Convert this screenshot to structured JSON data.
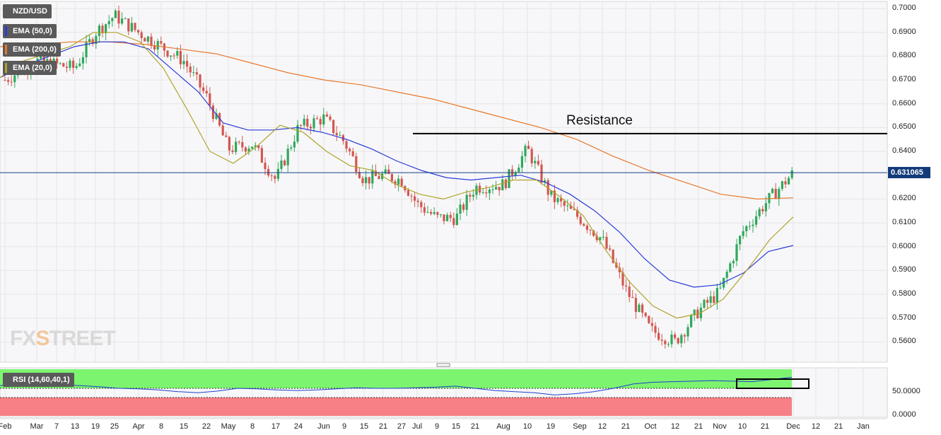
{
  "chart_data": {
    "type": "candlestick",
    "symbol": "NZD/USD",
    "indicators": [
      {
        "name": "EMA (50,0)",
        "color": "#2a3bd8"
      },
      {
        "name": "EMA (200,0)",
        "color": "#e8782c"
      },
      {
        "name": "EMA (20,0)",
        "color": "#b0a32a"
      }
    ],
    "current_price": "0.631065",
    "resistance_label": "Resistance",
    "resistance_level": 0.6475,
    "ylim": [
      0.5515,
      0.703
    ],
    "y_ticks": [
      "0.7000",
      "0.6900",
      "0.6800",
      "0.6700",
      "0.6600",
      "0.6500",
      "0.6400",
      "0.6200",
      "0.6100",
      "0.6000",
      "0.5900",
      "0.5800",
      "0.5700",
      "0.5600"
    ],
    "x_ticks": [
      "Feb",
      "Mar",
      "7",
      "13",
      "19",
      "25",
      "Apr",
      "8",
      "15",
      "22",
      "May",
      "8",
      "17",
      "24",
      "Jun",
      "9",
      "15",
      "21",
      "27",
      "Jul",
      "9",
      "15",
      "21",
      "Aug",
      "10",
      "19",
      "Sep",
      "12",
      "21",
      "Oct",
      "12",
      "21",
      "Nov",
      "10",
      "21",
      "Dec",
      "12",
      "21",
      "Jan"
    ],
    "close_path": [
      [
        "Feb",
        0.67
      ],
      [
        "Mar",
        0.678
      ],
      [
        "13",
        0.675
      ],
      [
        "19",
        0.69
      ],
      [
        "25",
        0.697
      ],
      [
        "Apr",
        0.69
      ],
      [
        "8",
        0.684
      ],
      [
        "15",
        0.678
      ],
      [
        "22",
        0.663
      ],
      [
        "May",
        0.641
      ],
      [
        "8",
        0.643
      ],
      [
        "17",
        0.628
      ],
      [
        "24",
        0.65
      ],
      [
        "Jun",
        0.654
      ],
      [
        "9",
        0.644
      ],
      [
        "15",
        0.628
      ],
      [
        "21",
        0.63
      ],
      [
        "27",
        0.628
      ],
      [
        "Jul",
        0.618
      ],
      [
        "9",
        0.612
      ],
      [
        "15",
        0.612
      ],
      [
        "21",
        0.625
      ],
      [
        "Aug",
        0.626
      ],
      [
        "10",
        0.641
      ],
      [
        "19",
        0.621
      ],
      [
        "Sep",
        0.612
      ],
      [
        "12",
        0.603
      ],
      [
        "21",
        0.582
      ],
      [
        "Oct",
        0.565
      ],
      [
        "12",
        0.56
      ],
      [
        "21",
        0.573
      ],
      [
        "Nov",
        0.581
      ],
      [
        "10",
        0.606
      ],
      [
        "21",
        0.618
      ],
      [
        "Dec",
        0.631
      ]
    ],
    "ema20": [
      0.671,
      0.678,
      0.681,
      0.684,
      0.69,
      0.69,
      0.686,
      0.675,
      0.658,
      0.64,
      0.635,
      0.642,
      0.651,
      0.648,
      0.64,
      0.634,
      0.632,
      0.626,
      0.622,
      0.62,
      0.623,
      0.625,
      0.628,
      0.628,
      0.621,
      0.613,
      0.598,
      0.585,
      0.575,
      0.57,
      0.572,
      0.578,
      0.59,
      0.603,
      0.6125
    ],
    "ema50": [
      0.671,
      0.676,
      0.68,
      0.684,
      0.686,
      0.686,
      0.683,
      0.674,
      0.665,
      0.652,
      0.649,
      0.649,
      0.65,
      0.648,
      0.645,
      0.641,
      0.636,
      0.632,
      0.629,
      0.628,
      0.629,
      0.63,
      0.627,
      0.622,
      0.615,
      0.606,
      0.595,
      0.586,
      0.583,
      0.584,
      0.589,
      0.598,
      0.6005
    ],
    "ema200": [
      0.684,
      0.685,
      0.686,
      0.686,
      0.685,
      0.683,
      0.681,
      0.677,
      0.673,
      0.67,
      0.668,
      0.665,
      0.662,
      0.658,
      0.654,
      0.65,
      0.645,
      0.638,
      0.632,
      0.627,
      0.622,
      0.62,
      0.6205
    ],
    "rsi_label": "RSI (14,60,40,1)",
    "rsi_ticks": [
      "50.0000",
      "0.0000"
    ],
    "rsi_values": [
      55,
      58,
      57,
      56,
      55,
      53,
      50,
      49,
      47,
      44,
      42,
      45,
      50,
      49,
      47,
      46,
      47,
      49,
      51,
      50,
      50,
      51,
      52,
      54,
      50,
      46,
      44,
      42,
      38,
      40,
      44,
      50,
      58,
      61,
      62,
      63,
      64,
      63,
      62,
      66,
      70
    ]
  }
}
